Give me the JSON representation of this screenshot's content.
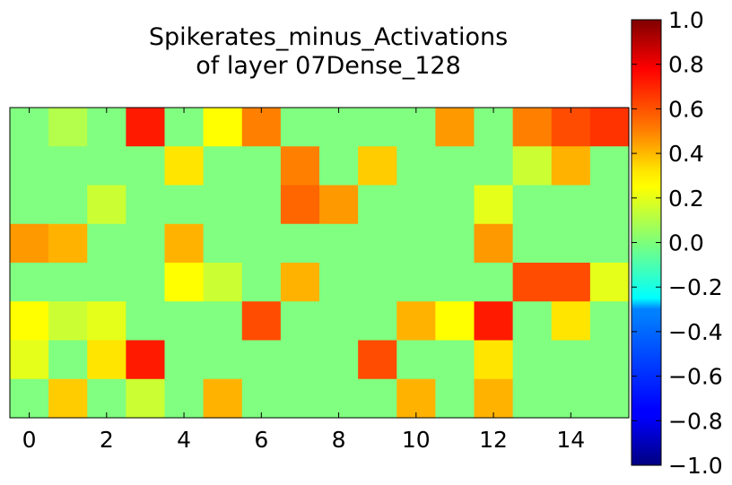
{
  "chart_data": {
    "type": "heatmap",
    "title_lines": [
      "Spikerates_minus_Activations",
      "of layer 07Dense_128"
    ],
    "xlabel": "",
    "ylabel": "",
    "x_ticks": [
      "0",
      "2",
      "4",
      "6",
      "8",
      "10",
      "12",
      "14"
    ],
    "x_tick_values": [
      0,
      2,
      4,
      6,
      8,
      10,
      12,
      14
    ],
    "x_range": [
      -0.5,
      15.5
    ],
    "y_range": [
      -0.5,
      7.5
    ],
    "colormap": "jet",
    "vmin": -1.0,
    "vmax": 1.0,
    "colorbar_ticks": [
      "1.0",
      "0.8",
      "0.6",
      "0.4",
      "0.2",
      "0.0",
      "−0.2",
      "−0.4",
      "−0.6",
      "−0.8",
      "−1.0"
    ],
    "colorbar_tick_values": [
      1.0,
      0.8,
      0.6,
      0.4,
      0.2,
      0.0,
      -0.2,
      -0.4,
      -0.6,
      -0.8,
      -1.0
    ],
    "values": [
      [
        0.0,
        0.1,
        0.0,
        0.7,
        0.0,
        0.25,
        0.5,
        0.0,
        0.0,
        0.0,
        0.0,
        0.45,
        0.0,
        0.5,
        0.6,
        0.65
      ],
      [
        0.0,
        0.0,
        0.0,
        0.0,
        0.3,
        0.0,
        0.0,
        0.5,
        0.0,
        0.35,
        0.0,
        0.0,
        0.0,
        0.15,
        0.4,
        0.0
      ],
      [
        0.0,
        0.0,
        0.15,
        0.0,
        0.0,
        0.0,
        0.0,
        0.55,
        0.45,
        0.0,
        0.0,
        0.0,
        0.2,
        0.0,
        0.0,
        0.0
      ],
      [
        0.45,
        0.4,
        0.0,
        0.0,
        0.4,
        0.0,
        0.0,
        0.0,
        0.0,
        0.0,
        0.0,
        0.0,
        0.45,
        0.0,
        0.0,
        0.0
      ],
      [
        0.0,
        0.0,
        0.0,
        0.0,
        0.25,
        0.15,
        0.0,
        0.4,
        0.0,
        0.0,
        0.0,
        0.0,
        0.0,
        0.6,
        0.6,
        0.2
      ],
      [
        0.25,
        0.15,
        0.2,
        0.0,
        0.0,
        0.0,
        0.6,
        0.0,
        0.0,
        0.0,
        0.4,
        0.25,
        0.7,
        0.0,
        0.3,
        0.0
      ],
      [
        0.2,
        0.0,
        0.3,
        0.7,
        0.0,
        0.0,
        0.0,
        0.0,
        0.0,
        0.6,
        0.0,
        0.0,
        0.3,
        0.0,
        0.0,
        0.0
      ],
      [
        0.0,
        0.35,
        0.0,
        0.15,
        0.0,
        0.4,
        0.0,
        0.0,
        0.0,
        0.0,
        0.4,
        0.0,
        0.4,
        0.0,
        0.0,
        0.0
      ]
    ]
  }
}
